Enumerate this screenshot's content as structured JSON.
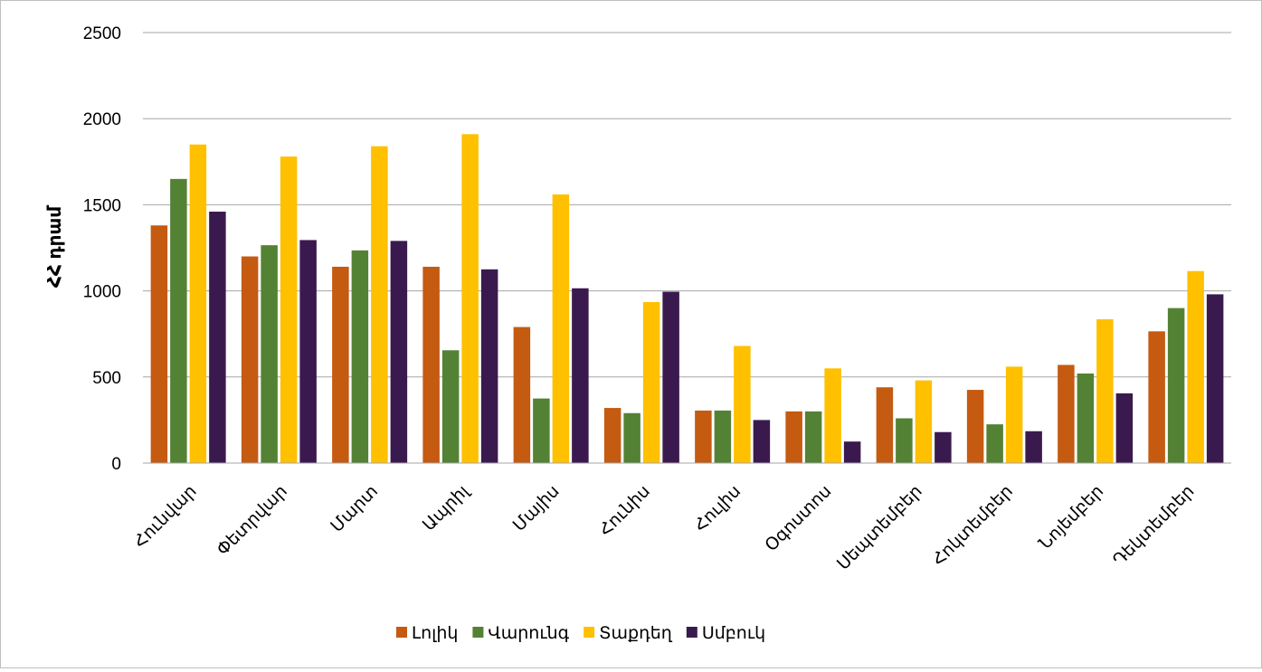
{
  "chart_data": {
    "type": "bar",
    "ylabel": "ՀՀ դրամ",
    "ylim": [
      0,
      2500
    ],
    "yticks": [
      0,
      500,
      1000,
      1500,
      2000,
      2500
    ],
    "grid": true,
    "legend_position": "bottom",
    "categories": [
      "Հունվար",
      "Փետրվար",
      "Մարտ",
      "Ապրիլ",
      "Մայիս",
      "Հունիս",
      "Հուլիս",
      "Օգոստոս",
      "Սեպտեմբեր",
      "Հոկտեմբեր",
      "Նոյեմբեր",
      "Դեկտեմբեր"
    ],
    "series": [
      {
        "name": "Լոլիկ",
        "color": "#c55a11",
        "values": [
          1380,
          1200,
          1140,
          1140,
          790,
          320,
          305,
          300,
          440,
          425,
          570,
          765
        ]
      },
      {
        "name": "Վարունգ",
        "color": "#548235",
        "values": [
          1650,
          1265,
          1235,
          655,
          375,
          290,
          305,
          300,
          260,
          225,
          520,
          900
        ]
      },
      {
        "name": "Տաքդեղ",
        "color": "#ffc000",
        "values": [
          1850,
          1780,
          1840,
          1910,
          1560,
          935,
          680,
          550,
          480,
          560,
          835,
          1115
        ]
      },
      {
        "name": "Սմբուկ",
        "color": "#3a1a4e",
        "values": [
          1460,
          1295,
          1290,
          1125,
          1015,
          995,
          250,
          125,
          180,
          185,
          405,
          980
        ]
      }
    ]
  }
}
